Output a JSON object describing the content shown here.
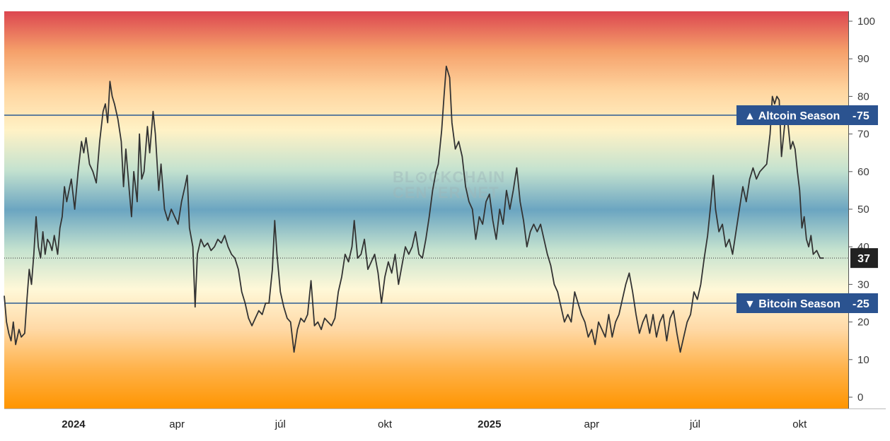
{
  "chart_data": {
    "type": "line",
    "x_start": "2023-11-01",
    "x_end": "2025-10-22",
    "ylim": [
      -3,
      100
    ],
    "y_ticks": [
      "0",
      "10",
      "20",
      "30",
      "40",
      "50",
      "60",
      "70",
      "80",
      "90",
      "100"
    ],
    "x_ticks": [
      {
        "label": "2024",
        "date": "2024-01-01",
        "bold": true
      },
      {
        "label": "apr",
        "date": "2024-04-01",
        "bold": false
      },
      {
        "label": "júl",
        "date": "2024-07-01",
        "bold": false
      },
      {
        "label": "okt",
        "date": "2024-10-01",
        "bold": false
      },
      {
        "label": "2025",
        "date": "2025-01-01",
        "bold": true
      },
      {
        "label": "apr",
        "date": "2025-04-01",
        "bold": false
      },
      {
        "label": "júl",
        "date": "2025-07-01",
        "bold": false
      },
      {
        "label": "okt",
        "date": "2025-10-01",
        "bold": false
      }
    ],
    "reference_lines": [
      {
        "label": "▲ Altcoin Season",
        "value": "75",
        "y": 75
      },
      {
        "label": "▼ Bitcoin Season",
        "value": "25",
        "y": 25
      }
    ],
    "current": {
      "value": "37",
      "y": 37
    },
    "watermark": [
      "BL⊙CKCHAIN",
      "CENTER.NET"
    ],
    "background_gradient": [
      "#ff9500",
      "#ffb24a",
      "#ffd9a6",
      "#fff8d8",
      "#c4e2cf",
      "#6ba5c1",
      "#c4e2cf",
      "#fff2c6",
      "#ffd59f",
      "#f5a06a",
      "#dc4650"
    ],
    "line_color": "#333333",
    "reference_line_color": "#2c5c94",
    "badge_color": "#2b5390",
    "points": [
      [
        "2023-11-01",
        27
      ],
      [
        "2023-11-03",
        20
      ],
      [
        "2023-11-05",
        17
      ],
      [
        "2023-11-07",
        15
      ],
      [
        "2023-11-09",
        20
      ],
      [
        "2023-11-11",
        14
      ],
      [
        "2023-11-14",
        18
      ],
      [
        "2023-11-16",
        16
      ],
      [
        "2023-11-19",
        17
      ],
      [
        "2023-11-21",
        26
      ],
      [
        "2023-11-23",
        34
      ],
      [
        "2023-11-25",
        30
      ],
      [
        "2023-11-27",
        38
      ],
      [
        "2023-11-29",
        48
      ],
      [
        "2023-12-01",
        40
      ],
      [
        "2023-12-03",
        37
      ],
      [
        "2023-12-05",
        44
      ],
      [
        "2023-12-07",
        38
      ],
      [
        "2023-12-09",
        42
      ],
      [
        "2023-12-11",
        41
      ],
      [
        "2023-12-13",
        39
      ],
      [
        "2023-12-15",
        43
      ],
      [
        "2023-12-18",
        38
      ],
      [
        "2023-12-20",
        45
      ],
      [
        "2023-12-22",
        48
      ],
      [
        "2023-12-24",
        56
      ],
      [
        "2023-12-26",
        52
      ],
      [
        "2023-12-28",
        55
      ],
      [
        "2023-12-30",
        58
      ],
      [
        "2024-01-02",
        50
      ],
      [
        "2024-01-05",
        60
      ],
      [
        "2024-01-08",
        68
      ],
      [
        "2024-01-10",
        65
      ],
      [
        "2024-01-12",
        69
      ],
      [
        "2024-01-15",
        62
      ],
      [
        "2024-01-18",
        60
      ],
      [
        "2024-01-21",
        57
      ],
      [
        "2024-01-24",
        68
      ],
      [
        "2024-01-27",
        76
      ],
      [
        "2024-01-29",
        78
      ],
      [
        "2024-01-31",
        73
      ],
      [
        "2024-02-02",
        84
      ],
      [
        "2024-02-04",
        80
      ],
      [
        "2024-02-06",
        78
      ],
      [
        "2024-02-09",
        74
      ],
      [
        "2024-02-12",
        68
      ],
      [
        "2024-02-14",
        56
      ],
      [
        "2024-02-16",
        66
      ],
      [
        "2024-02-19",
        55
      ],
      [
        "2024-02-21",
        48
      ],
      [
        "2024-02-23",
        60
      ],
      [
        "2024-02-26",
        52
      ],
      [
        "2024-02-28",
        70
      ],
      [
        "2024-03-01",
        58
      ],
      [
        "2024-03-03",
        60
      ],
      [
        "2024-03-06",
        72
      ],
      [
        "2024-03-08",
        65
      ],
      [
        "2024-03-11",
        76
      ],
      [
        "2024-03-13",
        70
      ],
      [
        "2024-03-16",
        55
      ],
      [
        "2024-03-18",
        62
      ],
      [
        "2024-03-21",
        50
      ],
      [
        "2024-03-24",
        47
      ],
      [
        "2024-03-27",
        50
      ],
      [
        "2024-03-30",
        48
      ],
      [
        "2024-04-02",
        46
      ],
      [
        "2024-04-05",
        52
      ],
      [
        "2024-04-08",
        56
      ],
      [
        "2024-04-10",
        59
      ],
      [
        "2024-04-12",
        45
      ],
      [
        "2024-04-15",
        40
      ],
      [
        "2024-04-17",
        24
      ],
      [
        "2024-04-19",
        38
      ],
      [
        "2024-04-22",
        42
      ],
      [
        "2024-04-25",
        40
      ],
      [
        "2024-04-28",
        41
      ],
      [
        "2024-05-01",
        39
      ],
      [
        "2024-05-04",
        40
      ],
      [
        "2024-05-07",
        42
      ],
      [
        "2024-05-10",
        41
      ],
      [
        "2024-05-13",
        43
      ],
      [
        "2024-05-16",
        40
      ],
      [
        "2024-05-19",
        38
      ],
      [
        "2024-05-22",
        37
      ],
      [
        "2024-05-25",
        34
      ],
      [
        "2024-05-28",
        28
      ],
      [
        "2024-05-31",
        25
      ],
      [
        "2024-06-03",
        21
      ],
      [
        "2024-06-06",
        19
      ],
      [
        "2024-06-09",
        21
      ],
      [
        "2024-06-12",
        23
      ],
      [
        "2024-06-15",
        22
      ],
      [
        "2024-06-18",
        25
      ],
      [
        "2024-06-21",
        25
      ],
      [
        "2024-06-24",
        34
      ],
      [
        "2024-06-26",
        47
      ],
      [
        "2024-06-28",
        38
      ],
      [
        "2024-07-01",
        28
      ],
      [
        "2024-07-04",
        24
      ],
      [
        "2024-07-07",
        21
      ],
      [
        "2024-07-10",
        20
      ],
      [
        "2024-07-13",
        12
      ],
      [
        "2024-07-16",
        18
      ],
      [
        "2024-07-19",
        21
      ],
      [
        "2024-07-22",
        20
      ],
      [
        "2024-07-25",
        22
      ],
      [
        "2024-07-28",
        31
      ],
      [
        "2024-07-31",
        19
      ],
      [
        "2024-08-03",
        20
      ],
      [
        "2024-08-06",
        18
      ],
      [
        "2024-08-09",
        21
      ],
      [
        "2024-08-12",
        20
      ],
      [
        "2024-08-15",
        19
      ],
      [
        "2024-08-18",
        21
      ],
      [
        "2024-08-21",
        28
      ],
      [
        "2024-08-24",
        32
      ],
      [
        "2024-08-27",
        38
      ],
      [
        "2024-08-30",
        36
      ],
      [
        "2024-09-02",
        40
      ],
      [
        "2024-09-04",
        47
      ],
      [
        "2024-09-07",
        37
      ],
      [
        "2024-09-10",
        38
      ],
      [
        "2024-09-13",
        42
      ],
      [
        "2024-09-16",
        34
      ],
      [
        "2024-09-19",
        36
      ],
      [
        "2024-09-22",
        38
      ],
      [
        "2024-09-25",
        33
      ],
      [
        "2024-09-28",
        25
      ],
      [
        "2024-10-01",
        32
      ],
      [
        "2024-10-04",
        36
      ],
      [
        "2024-10-07",
        33
      ],
      [
        "2024-10-10",
        38
      ],
      [
        "2024-10-13",
        30
      ],
      [
        "2024-10-16",
        35
      ],
      [
        "2024-10-19",
        40
      ],
      [
        "2024-10-22",
        38
      ],
      [
        "2024-10-25",
        40
      ],
      [
        "2024-10-28",
        44
      ],
      [
        "2024-10-31",
        38
      ],
      [
        "2024-11-03",
        37
      ],
      [
        "2024-11-06",
        42
      ],
      [
        "2024-11-09",
        48
      ],
      [
        "2024-11-12",
        55
      ],
      [
        "2024-11-15",
        60
      ],
      [
        "2024-11-17",
        62
      ],
      [
        "2024-11-20",
        71
      ],
      [
        "2024-11-22",
        80
      ],
      [
        "2024-11-24",
        88
      ],
      [
        "2024-11-27",
        85
      ],
      [
        "2024-11-29",
        73
      ],
      [
        "2024-12-02",
        66
      ],
      [
        "2024-12-05",
        68
      ],
      [
        "2024-12-08",
        64
      ],
      [
        "2024-12-11",
        56
      ],
      [
        "2024-12-14",
        52
      ],
      [
        "2024-12-17",
        50
      ],
      [
        "2024-12-20",
        42
      ],
      [
        "2024-12-23",
        48
      ],
      [
        "2024-12-26",
        46
      ],
      [
        "2024-12-29",
        52
      ],
      [
        "2025-01-01",
        54
      ],
      [
        "2025-01-04",
        47
      ],
      [
        "2025-01-07",
        42
      ],
      [
        "2025-01-10",
        50
      ],
      [
        "2025-01-13",
        46
      ],
      [
        "2025-01-16",
        55
      ],
      [
        "2025-01-19",
        50
      ],
      [
        "2025-01-22",
        55
      ],
      [
        "2025-01-25",
        61
      ],
      [
        "2025-01-28",
        52
      ],
      [
        "2025-01-31",
        47
      ],
      [
        "2025-02-03",
        40
      ],
      [
        "2025-02-06",
        44
      ],
      [
        "2025-02-09",
        46
      ],
      [
        "2025-02-12",
        44
      ],
      [
        "2025-02-15",
        46
      ],
      [
        "2025-02-18",
        42
      ],
      [
        "2025-02-21",
        38
      ],
      [
        "2025-02-24",
        35
      ],
      [
        "2025-02-27",
        30
      ],
      [
        "2025-03-02",
        28
      ],
      [
        "2025-03-05",
        24
      ],
      [
        "2025-03-08",
        20
      ],
      [
        "2025-03-11",
        22
      ],
      [
        "2025-03-14",
        20
      ],
      [
        "2025-03-17",
        28
      ],
      [
        "2025-03-20",
        25
      ],
      [
        "2025-03-23",
        22
      ],
      [
        "2025-03-26",
        20
      ],
      [
        "2025-03-29",
        16
      ],
      [
        "2025-04-01",
        18
      ],
      [
        "2025-04-04",
        14
      ],
      [
        "2025-04-07",
        20
      ],
      [
        "2025-04-10",
        18
      ],
      [
        "2025-04-13",
        16
      ],
      [
        "2025-04-16",
        22
      ],
      [
        "2025-04-19",
        16
      ],
      [
        "2025-04-22",
        20
      ],
      [
        "2025-04-25",
        22
      ],
      [
        "2025-04-28",
        26
      ],
      [
        "2025-05-01",
        30
      ],
      [
        "2025-05-04",
        33
      ],
      [
        "2025-05-07",
        28
      ],
      [
        "2025-05-10",
        22
      ],
      [
        "2025-05-13",
        17
      ],
      [
        "2025-05-16",
        20
      ],
      [
        "2025-05-19",
        22
      ],
      [
        "2025-05-22",
        17
      ],
      [
        "2025-05-25",
        22
      ],
      [
        "2025-05-28",
        16
      ],
      [
        "2025-05-31",
        20
      ],
      [
        "2025-06-03",
        22
      ],
      [
        "2025-06-06",
        15
      ],
      [
        "2025-06-09",
        21
      ],
      [
        "2025-06-12",
        23
      ],
      [
        "2025-06-15",
        17
      ],
      [
        "2025-06-18",
        12
      ],
      [
        "2025-06-21",
        16
      ],
      [
        "2025-06-24",
        20
      ],
      [
        "2025-06-27",
        22
      ],
      [
        "2025-06-30",
        28
      ],
      [
        "2025-07-03",
        26
      ],
      [
        "2025-07-06",
        30
      ],
      [
        "2025-07-09",
        37
      ],
      [
        "2025-07-12",
        43
      ],
      [
        "2025-07-15",
        52
      ],
      [
        "2025-07-17",
        59
      ],
      [
        "2025-07-19",
        50
      ],
      [
        "2025-07-22",
        44
      ],
      [
        "2025-07-25",
        46
      ],
      [
        "2025-07-28",
        40
      ],
      [
        "2025-07-31",
        42
      ],
      [
        "2025-08-03",
        38
      ],
      [
        "2025-08-06",
        44
      ],
      [
        "2025-08-09",
        50
      ],
      [
        "2025-08-12",
        56
      ],
      [
        "2025-08-15",
        52
      ],
      [
        "2025-08-18",
        58
      ],
      [
        "2025-08-21",
        61
      ],
      [
        "2025-08-24",
        58
      ],
      [
        "2025-08-27",
        60
      ],
      [
        "2025-08-30",
        61
      ],
      [
        "2025-09-02",
        62
      ],
      [
        "2025-09-05",
        70
      ],
      [
        "2025-09-07",
        80
      ],
      [
        "2025-09-09",
        78
      ],
      [
        "2025-09-11",
        80
      ],
      [
        "2025-09-13",
        79
      ],
      [
        "2025-09-15",
        64
      ],
      [
        "2025-09-17",
        70
      ],
      [
        "2025-09-19",
        76
      ],
      [
        "2025-09-21",
        72
      ],
      [
        "2025-09-23",
        66
      ],
      [
        "2025-09-25",
        68
      ],
      [
        "2025-09-27",
        66
      ],
      [
        "2025-09-29",
        60
      ],
      [
        "2025-10-01",
        55
      ],
      [
        "2025-10-03",
        45
      ],
      [
        "2025-10-05",
        48
      ],
      [
        "2025-10-07",
        42
      ],
      [
        "2025-10-09",
        40
      ],
      [
        "2025-10-11",
        43
      ],
      [
        "2025-10-13",
        38
      ],
      [
        "2025-10-16",
        39
      ],
      [
        "2025-10-19",
        37
      ],
      [
        "2025-10-22",
        37
      ]
    ]
  }
}
